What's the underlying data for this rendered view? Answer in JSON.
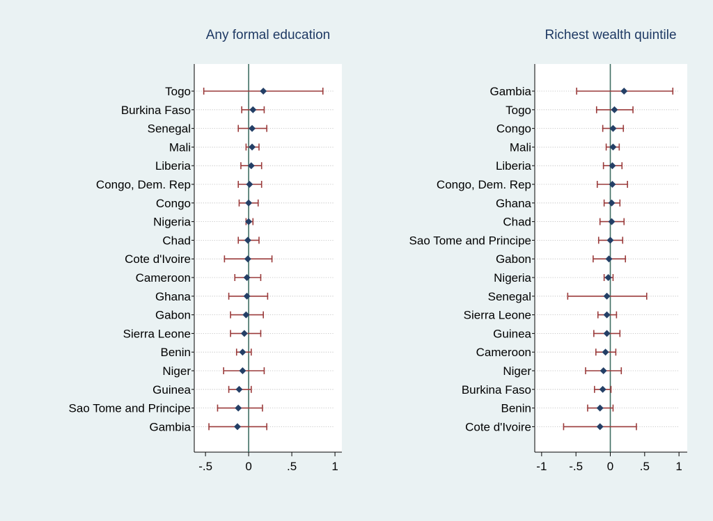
{
  "colors": {
    "background": "#eaf2f3",
    "plot_background": "#ffffff",
    "title": "#1f3a64",
    "marker": "#243f66",
    "error_bar": "#9a3a3a",
    "zero_line": "#3f6e63",
    "row_line": "#b8b8b8"
  },
  "chart_data": [
    {
      "type": "scatter",
      "subtype": "coefficient-plot",
      "title": "Any formal education",
      "xlabel": "",
      "ylabel": "",
      "xlim": [
        -0.63,
        1.08
      ],
      "xticks": [
        -0.5,
        0,
        0.5,
        1
      ],
      "xtick_labels": [
        "-.5",
        "0",
        ".5",
        "1"
      ],
      "reference_line": 0,
      "grid": false,
      "categories": [
        "Togo",
        "Burkina Faso",
        "Senegal",
        "Mali",
        "Liberia",
        "Congo, Dem. Rep",
        "Congo",
        "Nigeria",
        "Chad",
        "Cote d'Ivoire",
        "Cameroon",
        "Ghana",
        "Gabon",
        "Sierra Leone",
        "Benin",
        "Niger",
        "Guinea",
        "Sao Tome and Principe",
        "Gambia"
      ],
      "values": [
        0.17,
        0.05,
        0.04,
        0.04,
        0.03,
        0.01,
        0.0,
        0.0,
        -0.01,
        -0.01,
        -0.02,
        -0.02,
        -0.03,
        -0.05,
        -0.07,
        -0.07,
        -0.11,
        -0.12,
        -0.13
      ],
      "ci_low": [
        -0.52,
        -0.08,
        -0.12,
        -0.03,
        -0.09,
        -0.12,
        -0.11,
        -0.03,
        -0.12,
        -0.28,
        -0.16,
        -0.23,
        -0.21,
        -0.21,
        -0.14,
        -0.29,
        -0.23,
        -0.36,
        -0.46
      ],
      "ci_high": [
        0.86,
        0.18,
        0.21,
        0.12,
        0.15,
        0.15,
        0.11,
        0.05,
        0.12,
        0.27,
        0.14,
        0.22,
        0.17,
        0.14,
        0.03,
        0.18,
        0.03,
        0.16,
        0.21
      ]
    },
    {
      "type": "scatter",
      "subtype": "coefficient-plot",
      "title": "Richest wealth quintile",
      "xlabel": "",
      "ylabel": "",
      "xlim": [
        -1.1,
        1.12
      ],
      "xticks": [
        -1,
        -0.5,
        0,
        0.5,
        1
      ],
      "xtick_labels": [
        "-1",
        "-.5",
        "0",
        ".5",
        "1"
      ],
      "reference_line": 0,
      "grid": false,
      "categories": [
        "Gambia",
        "Togo",
        "Congo",
        "Mali",
        "Liberia",
        "Congo, Dem. Rep",
        "Ghana",
        "Chad",
        "Sao Tome and Principe",
        "Gabon",
        "Nigeria",
        "Senegal",
        "Sierra Leone",
        "Guinea",
        "Cameroon",
        "Niger",
        "Burkina Faso",
        "Benin",
        "Cote d'Ivoire"
      ],
      "values": [
        0.2,
        0.06,
        0.04,
        0.04,
        0.03,
        0.03,
        0.02,
        0.02,
        0.0,
        -0.02,
        -0.03,
        -0.05,
        -0.05,
        -0.05,
        -0.07,
        -0.1,
        -0.11,
        -0.15,
        -0.15
      ],
      "ci_low": [
        -0.49,
        -0.2,
        -0.11,
        -0.06,
        -0.1,
        -0.19,
        -0.09,
        -0.15,
        -0.17,
        -0.25,
        -0.09,
        -0.62,
        -0.18,
        -0.24,
        -0.21,
        -0.36,
        -0.23,
        -0.33,
        -0.68
      ],
      "ci_high": [
        0.91,
        0.33,
        0.19,
        0.13,
        0.17,
        0.25,
        0.14,
        0.2,
        0.18,
        0.22,
        0.04,
        0.53,
        0.09,
        0.14,
        0.08,
        0.16,
        0.01,
        0.04,
        0.38
      ]
    }
  ]
}
